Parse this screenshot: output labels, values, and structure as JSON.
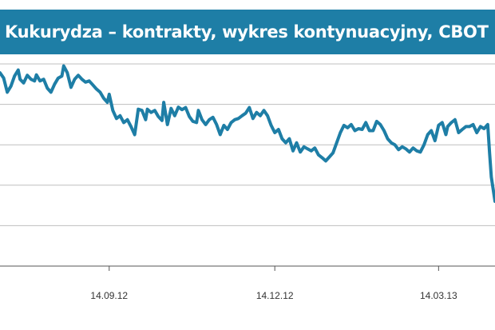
{
  "title": "Kukurydza – kontrakty, wykres kontynuacyjny, CBOT",
  "colors": {
    "title_bg": "#1e7ea6",
    "line": "#1e7ea6",
    "grid": "#bfbfbf",
    "axis": "#555555"
  },
  "chart_data": {
    "type": "line",
    "title": "Kukurydza – kontrakty, wykres kontynuacyjny, CBOT",
    "xlabel": "",
    "ylabel": "",
    "grid": true,
    "x_tick_labels": [
      "14.09.12",
      "14.12.12",
      "14.03.13"
    ],
    "x_tick_positions": [
      60,
      151,
      241
    ],
    "xlim": [
      0,
      272
    ],
    "ylim": [
      0,
      5
    ],
    "y_gridlines": [
      1,
      2,
      3,
      4,
      5
    ],
    "series": [
      {
        "values": [
          [
            0,
            4.78
          ],
          [
            2,
            4.65
          ],
          [
            4,
            4.3
          ],
          [
            6,
            4.45
          ],
          [
            8,
            4.7
          ],
          [
            10,
            4.85
          ],
          [
            11,
            4.62
          ],
          [
            13,
            4.53
          ],
          [
            15,
            4.72
          ],
          [
            17,
            4.62
          ],
          [
            19,
            4.58
          ],
          [
            20,
            4.73
          ],
          [
            22,
            4.58
          ],
          [
            24,
            4.62
          ],
          [
            26,
            4.4
          ],
          [
            28,
            4.3
          ],
          [
            30,
            4.5
          ],
          [
            32,
            4.65
          ],
          [
            34,
            4.7
          ],
          [
            35,
            4.95
          ],
          [
            37,
            4.78
          ],
          [
            39,
            4.42
          ],
          [
            41,
            4.62
          ],
          [
            43,
            4.72
          ],
          [
            45,
            4.62
          ],
          [
            47,
            4.55
          ],
          [
            49,
            4.58
          ],
          [
            51,
            4.48
          ],
          [
            53,
            4.38
          ],
          [
            55,
            4.3
          ],
          [
            57,
            4.15
          ],
          [
            59,
            4.05
          ],
          [
            60,
            4.25
          ],
          [
            62,
            3.85
          ],
          [
            64,
            3.65
          ],
          [
            66,
            3.72
          ],
          [
            68,
            3.55
          ],
          [
            70,
            3.62
          ],
          [
            72,
            3.45
          ],
          [
            74,
            3.25
          ],
          [
            76,
            3.88
          ],
          [
            78,
            3.85
          ],
          [
            80,
            3.62
          ],
          [
            81,
            3.88
          ],
          [
            83,
            3.8
          ],
          [
            85,
            3.85
          ],
          [
            87,
            3.7
          ],
          [
            89,
            3.6
          ],
          [
            90,
            4.05
          ],
          [
            92,
            3.5
          ],
          [
            94,
            3.9
          ],
          [
            96,
            3.72
          ],
          [
            98,
            3.93
          ],
          [
            100,
            3.87
          ],
          [
            102,
            3.92
          ],
          [
            104,
            3.7
          ],
          [
            106,
            3.58
          ],
          [
            108,
            3.55
          ],
          [
            109,
            3.85
          ],
          [
            111,
            3.62
          ],
          [
            113,
            3.5
          ],
          [
            115,
            3.62
          ],
          [
            117,
            3.68
          ],
          [
            119,
            3.5
          ],
          [
            121,
            3.25
          ],
          [
            123,
            3.48
          ],
          [
            125,
            3.38
          ],
          [
            127,
            3.55
          ],
          [
            129,
            3.62
          ],
          [
            131,
            3.65
          ],
          [
            133,
            3.72
          ],
          [
            135,
            3.78
          ],
          [
            137,
            3.92
          ],
          [
            139,
            3.65
          ],
          [
            141,
            3.8
          ],
          [
            143,
            3.72
          ],
          [
            145,
            3.85
          ],
          [
            147,
            3.72
          ],
          [
            149,
            3.48
          ],
          [
            151,
            3.3
          ],
          [
            153,
            3.38
          ],
          [
            155,
            3.15
          ],
          [
            157,
            3.05
          ],
          [
            159,
            3.15
          ],
          [
            161,
            2.85
          ],
          [
            163,
            3.05
          ],
          [
            165,
            2.82
          ],
          [
            167,
            2.95
          ],
          [
            169,
            2.9
          ],
          [
            171,
            2.85
          ],
          [
            173,
            2.92
          ],
          [
            175,
            2.75
          ],
          [
            177,
            2.68
          ],
          [
            179,
            2.6
          ],
          [
            181,
            2.7
          ],
          [
            183,
            2.8
          ],
          [
            185,
            3.05
          ],
          [
            187,
            3.3
          ],
          [
            189,
            3.48
          ],
          [
            191,
            3.42
          ],
          [
            193,
            3.5
          ],
          [
            195,
            3.35
          ],
          [
            197,
            3.4
          ],
          [
            199,
            3.38
          ],
          [
            201,
            3.55
          ],
          [
            203,
            3.35
          ],
          [
            205,
            3.35
          ],
          [
            207,
            3.58
          ],
          [
            209,
            3.5
          ],
          [
            211,
            3.35
          ],
          [
            213,
            3.15
          ],
          [
            215,
            3.05
          ],
          [
            217,
            3.0
          ],
          [
            219,
            2.88
          ],
          [
            221,
            2.95
          ],
          [
            223,
            2.9
          ],
          [
            225,
            2.82
          ],
          [
            227,
            2.92
          ],
          [
            229,
            2.85
          ],
          [
            231,
            2.82
          ],
          [
            233,
            3.0
          ],
          [
            235,
            3.25
          ],
          [
            237,
            3.35
          ],
          [
            239,
            3.1
          ],
          [
            241,
            3.48
          ],
          [
            243,
            3.55
          ],
          [
            245,
            3.25
          ],
          [
            246,
            3.45
          ],
          [
            248,
            3.55
          ],
          [
            250,
            3.62
          ],
          [
            252,
            3.3
          ],
          [
            254,
            3.38
          ],
          [
            256,
            3.45
          ],
          [
            258,
            3.45
          ],
          [
            260,
            3.5
          ],
          [
            262,
            3.3
          ],
          [
            264,
            3.45
          ],
          [
            266,
            3.4
          ],
          [
            268,
            3.5
          ],
          [
            269,
            2.8
          ],
          [
            270,
            2.2
          ],
          [
            272,
            1.6
          ]
        ]
      }
    ]
  }
}
